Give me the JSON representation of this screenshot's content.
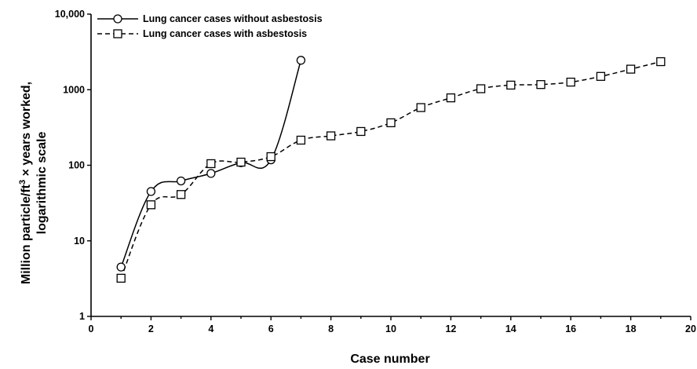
{
  "chart_data": {
    "type": "line",
    "xlabel": "Case number",
    "ylabel": {
      "line1_pre": "Million particle/ft",
      "line1_sup": "3",
      "line1_post": " × years worked,",
      "line2": "logarithmic scale"
    },
    "xlim": [
      0,
      20
    ],
    "ylim": [
      1,
      10000
    ],
    "yscale": "log",
    "x_ticks": [
      0,
      2,
      4,
      6,
      8,
      10,
      12,
      14,
      16,
      18,
      20
    ],
    "x_tick_labels": [
      "0",
      "2",
      "4",
      "6",
      "8",
      "10",
      "12",
      "14",
      "16",
      "18",
      "20"
    ],
    "y_ticks": [
      1,
      10,
      100,
      1000,
      10000
    ],
    "y_tick_labels": [
      "1",
      "10",
      "100",
      "1000",
      "10,000"
    ],
    "grid": false,
    "legend_position": "top-left",
    "series": [
      {
        "name": "Lung cancer cases without asbestosis",
        "marker": "circle",
        "line_style": "solid",
        "x": [
          1,
          2,
          3,
          4,
          5,
          6,
          7
        ],
        "y": [
          4.5,
          45,
          62,
          78,
          108,
          118,
          2450
        ]
      },
      {
        "name": "Lung cancer cases with asbestosis",
        "marker": "square",
        "line_style": "dashed",
        "x": [
          1,
          2,
          3,
          4,
          5,
          6,
          7,
          8,
          9,
          10,
          11,
          12,
          13,
          14,
          15,
          16,
          17,
          18,
          19
        ],
        "y": [
          3.2,
          30,
          41,
          105,
          110,
          130,
          215,
          245,
          280,
          365,
          580,
          780,
          1030,
          1150,
          1170,
          1260,
          1500,
          1870,
          2350
        ]
      }
    ]
  }
}
